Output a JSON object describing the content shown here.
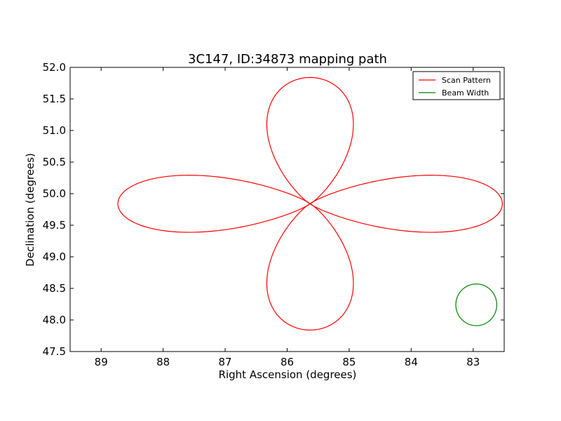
{
  "chart_data": {
    "type": "line",
    "title": "3C147, ID:34873 mapping path",
    "xlabel": "Right Ascension (degrees)",
    "ylabel": "Declination (degrees)",
    "xlim": [
      89.5,
      82.5
    ],
    "ylim": [
      47.5,
      52.0
    ],
    "x_inverted": true,
    "xticks": [
      89,
      88,
      87,
      86,
      85,
      84,
      83
    ],
    "xtick_labels": [
      "89",
      "88",
      "87",
      "86",
      "85",
      "84",
      "83"
    ],
    "yticks": [
      47.5,
      48.0,
      48.5,
      49.0,
      49.5,
      50.0,
      50.5,
      51.0,
      51.5,
      52.0
    ],
    "ytick_labels": [
      "47.5",
      "48.0",
      "48.5",
      "49.0",
      "49.5",
      "50.0",
      "50.5",
      "51.0",
      "51.5",
      "52.0"
    ],
    "grid": false,
    "legend_position": "top-right",
    "series": [
      {
        "name": "Scan Pattern",
        "color": "#ff0000",
        "kind": "four-lobe rosette",
        "center": [
          85.63,
          49.84
        ],
        "lobe_extent_ra": 3.1,
        "lobe_extent_dec": 2.0,
        "lobe_half_width_ra": 0.85,
        "lobe_half_width_dec": 0.55
      },
      {
        "name": "Beam Width",
        "color": "#008000",
        "kind": "circle",
        "center": [
          82.95,
          48.24
        ],
        "radius_ra": 0.33,
        "radius_dec": 0.33
      }
    ]
  }
}
